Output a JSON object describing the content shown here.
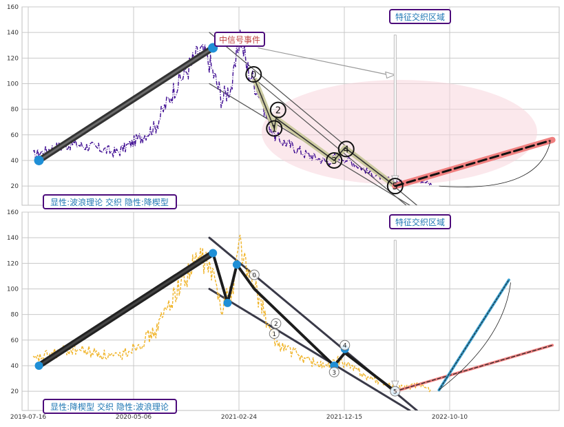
{
  "colors": {
    "bg": "#ffffff",
    "grid": "#c8c8c8",
    "frame": "#bfbfbf",
    "top_price": "#3d0a91",
    "bottom_price": "#f0b429",
    "accent_blue": "#1f8fd6",
    "label_text": "#1f77b4",
    "box_border": "#4b0a7a",
    "signal_text": "#c04040",
    "proj_red": "#f08080",
    "proj_blue": "#3aa0d0",
    "ellipse": "#f7d6dc",
    "dark_line": "#2b2b2b",
    "olive": "#c9c99a"
  },
  "chart_data": [
    {
      "type": "line",
      "panel": "top",
      "yticks": [
        20,
        40,
        60,
        80,
        100,
        120,
        140,
        160
      ],
      "ylim": [
        5,
        160
      ],
      "xlim": [
        "2019-06-20",
        "2023-08-10"
      ],
      "grid": true,
      "price_series": {
        "color": "#3d0a91",
        "style": "dashdot",
        "points": [
          [
            "2019-07-30",
            44
          ],
          [
            "2019-09-15",
            49
          ],
          [
            "2019-11-20",
            53
          ],
          [
            "2020-01-20",
            50
          ],
          [
            "2020-03-20",
            46
          ],
          [
            "2020-05-20",
            57
          ],
          [
            "2020-07-05",
            66
          ],
          [
            "2020-08-10",
            86
          ],
          [
            "2020-09-05",
            100
          ],
          [
            "2020-10-10",
            113
          ],
          [
            "2020-11-10",
            125
          ],
          [
            "2020-12-05",
            117
          ],
          [
            "2021-01-10",
            88
          ],
          [
            "2021-02-10",
            101
          ],
          [
            "2021-03-01",
            140
          ],
          [
            "2021-03-20",
            113
          ],
          [
            "2021-04-05",
            104
          ],
          [
            "2021-05-01",
            88
          ],
          [
            "2021-05-20",
            69
          ],
          [
            "2021-06-10",
            58
          ],
          [
            "2021-07-05",
            54
          ],
          [
            "2021-08-01",
            50
          ],
          [
            "2021-09-01",
            45
          ],
          [
            "2021-10-01",
            42
          ],
          [
            "2021-11-01",
            39
          ],
          [
            "2021-12-01",
            44
          ],
          [
            "2022-01-01",
            40
          ],
          [
            "2022-02-01",
            35
          ],
          [
            "2022-03-01",
            30
          ],
          [
            "2022-04-01",
            27
          ],
          [
            "2022-05-10",
            23
          ],
          [
            "2022-06-15",
            23
          ],
          [
            "2022-07-15",
            25
          ],
          [
            "2022-08-20",
            21
          ]
        ]
      },
      "waves": [
        {
          "label": "0",
          "x": "2021-04-10",
          "y": 104
        },
        {
          "label": "1",
          "x": "2021-06-05",
          "y": 65
        },
        {
          "label": "2",
          "x": "2021-06-10",
          "y": 73
        },
        {
          "label": "3",
          "x": "2021-11-20",
          "y": 40
        },
        {
          "label": "4",
          "x": "2021-12-20",
          "y": 50
        },
        {
          "label": "5",
          "x": "2022-05-10",
          "y": 20
        }
      ],
      "labels": {
        "signal_event": "中信号事件",
        "feature_zone": "特征交织区域",
        "caption": "显性:波浪理论 交织 隐性:降楔型"
      }
    },
    {
      "type": "line",
      "panel": "bottom",
      "yticks": [
        20,
        40,
        60,
        80,
        100,
        120,
        140,
        160
      ],
      "xticks": [
        "2019-07-16",
        "2020-05-06",
        "2021-02-24",
        "2021-12-15",
        "2022-10-10"
      ],
      "ylim": [
        5,
        160
      ],
      "xlim": [
        "2019-06-20",
        "2023-08-10"
      ],
      "grid": true,
      "price_series": {
        "color": "#f0b429",
        "style": "dashed",
        "points": [
          [
            "2019-07-30",
            44
          ],
          [
            "2019-09-15",
            49
          ],
          [
            "2019-11-20",
            53
          ],
          [
            "2020-01-20",
            50
          ],
          [
            "2020-03-20",
            46
          ],
          [
            "2020-05-20",
            57
          ],
          [
            "2020-07-05",
            66
          ],
          [
            "2020-08-10",
            86
          ],
          [
            "2020-09-05",
            100
          ],
          [
            "2020-10-10",
            113
          ],
          [
            "2020-11-10",
            125
          ],
          [
            "2020-12-05",
            117
          ],
          [
            "2021-01-10",
            88
          ],
          [
            "2021-02-10",
            101
          ],
          [
            "2021-03-01",
            140
          ],
          [
            "2021-03-20",
            113
          ],
          [
            "2021-04-05",
            104
          ],
          [
            "2021-05-01",
            88
          ],
          [
            "2021-05-20",
            69
          ],
          [
            "2021-06-10",
            58
          ],
          [
            "2021-07-05",
            54
          ],
          [
            "2021-08-01",
            50
          ],
          [
            "2021-09-01",
            45
          ],
          [
            "2021-10-01",
            42
          ],
          [
            "2021-11-01",
            39
          ],
          [
            "2021-12-01",
            44
          ],
          [
            "2022-01-01",
            40
          ],
          [
            "2022-02-01",
            35
          ],
          [
            "2022-03-01",
            30
          ],
          [
            "2022-04-01",
            27
          ],
          [
            "2022-05-10",
            23
          ],
          [
            "2022-06-15",
            23
          ],
          [
            "2022-07-15",
            25
          ],
          [
            "2022-08-20",
            21
          ]
        ]
      },
      "waves": [
        {
          "label": "0",
          "x": "2021-04-10",
          "y": 111
        },
        {
          "label": "1",
          "x": "2021-06-05",
          "y": 65
        },
        {
          "label": "2",
          "x": "2021-06-10",
          "y": 73
        },
        {
          "label": "3",
          "x": "2021-11-20",
          "y": 35
        },
        {
          "label": "4",
          "x": "2021-12-20",
          "y": 56
        },
        {
          "label": "5",
          "x": "2022-05-10",
          "y": 20
        }
      ],
      "labels": {
        "feature_zone": "特征交织区域",
        "caption": "显性:降楔型 交织 隐性:波浪理论"
      }
    }
  ]
}
